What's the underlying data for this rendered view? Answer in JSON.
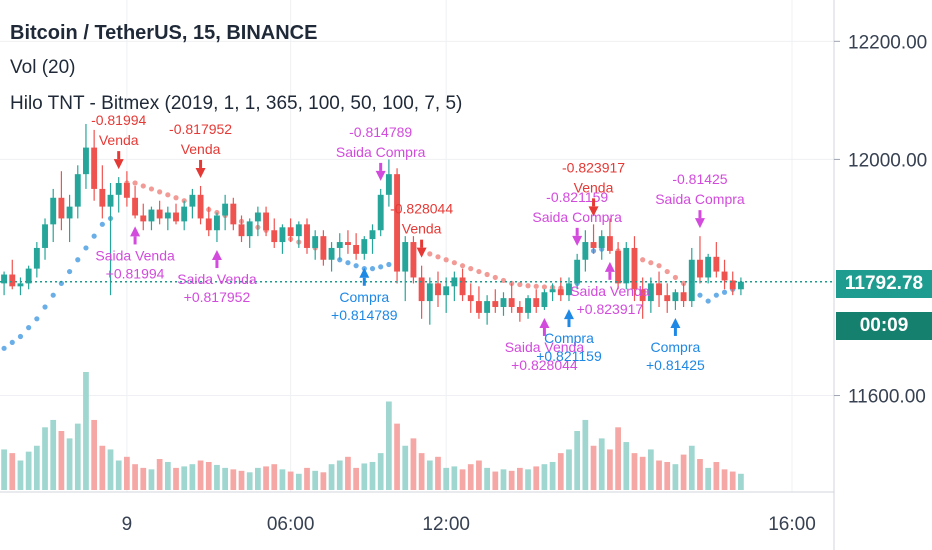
{
  "legend": {
    "symbol": "Bitcoin / TetherUS, 15, BINANCE",
    "volume": "Vol (20)",
    "indicator": "Hilo TNT - Bitmex (2019, 1, 1, 365, 100, 50, 100, 7, 5)"
  },
  "current_price": "11792.78",
  "countdown": "00:09",
  "colors": {
    "up": "#26a69a",
    "down": "#ef5350",
    "up_vol": "#9fd6cf",
    "down_vol": "#f5a7a5",
    "hilo_up": "#6aaee8",
    "hilo_down": "#f29a96",
    "buy": "#1e88e5",
    "sell": "#e53935",
    "exit": "#d24bdc"
  },
  "chart_data": {
    "type": "candlestick",
    "y_axis": {
      "ticks": [
        "12200.00",
        "12000.00",
        "11600.00"
      ],
      "range": [
        11440,
        12270
      ]
    },
    "x_axis": {
      "ticks": [
        "9",
        "06:00",
        "12:00",
        "16:00"
      ]
    },
    "title": "Bitcoin / TetherUS, 15, BINANCE",
    "candles": [
      {
        "o": 11790,
        "h": 11810,
        "l": 11770,
        "c": 11805
      },
      {
        "o": 11805,
        "h": 11830,
        "l": 11780,
        "c": 11785
      },
      {
        "o": 11785,
        "h": 11800,
        "l": 11770,
        "c": 11790
      },
      {
        "o": 11790,
        "h": 11820,
        "l": 11780,
        "c": 11815
      },
      {
        "o": 11815,
        "h": 11860,
        "l": 11800,
        "c": 11850
      },
      {
        "o": 11850,
        "h": 11900,
        "l": 11830,
        "c": 11890
      },
      {
        "o": 11890,
        "h": 11950,
        "l": 11860,
        "c": 11935
      },
      {
        "o": 11935,
        "h": 11980,
        "l": 11880,
        "c": 11900
      },
      {
        "o": 11900,
        "h": 11940,
        "l": 11860,
        "c": 11920
      },
      {
        "o": 11920,
        "h": 11990,
        "l": 11900,
        "c": 11975
      },
      {
        "o": 11975,
        "h": 12060,
        "l": 11950,
        "c": 12020
      },
      {
        "o": 12020,
        "h": 12050,
        "l": 11930,
        "c": 11950
      },
      {
        "o": 11950,
        "h": 11990,
        "l": 11900,
        "c": 11920
      },
      {
        "o": 11920,
        "h": 11960,
        "l": 11770,
        "c": 11940
      },
      {
        "o": 11940,
        "h": 11970,
        "l": 11910,
        "c": 11960
      },
      {
        "o": 11960,
        "h": 11980,
        "l": 11920,
        "c": 11935
      },
      {
        "o": 11935,
        "h": 11955,
        "l": 11900,
        "c": 11905
      },
      {
        "o": 11905,
        "h": 11925,
        "l": 11880,
        "c": 11895
      },
      {
        "o": 11895,
        "h": 11920,
        "l": 11880,
        "c": 11915
      },
      {
        "o": 11915,
        "h": 11930,
        "l": 11890,
        "c": 11900
      },
      {
        "o": 11900,
        "h": 11920,
        "l": 11880,
        "c": 11910
      },
      {
        "o": 11910,
        "h": 11925,
        "l": 11890,
        "c": 11895
      },
      {
        "o": 11895,
        "h": 11930,
        "l": 11880,
        "c": 11920
      },
      {
        "o": 11920,
        "h": 11950,
        "l": 11900,
        "c": 11940
      },
      {
        "o": 11940,
        "h": 11955,
        "l": 11890,
        "c": 11900
      },
      {
        "o": 11900,
        "h": 11920,
        "l": 11870,
        "c": 11880
      },
      {
        "o": 11880,
        "h": 11910,
        "l": 11860,
        "c": 11905
      },
      {
        "o": 11905,
        "h": 11940,
        "l": 11880,
        "c": 11925
      },
      {
        "o": 11925,
        "h": 11935,
        "l": 11880,
        "c": 11890
      },
      {
        "o": 11890,
        "h": 11905,
        "l": 11860,
        "c": 11870
      },
      {
        "o": 11870,
        "h": 11900,
        "l": 11850,
        "c": 11895
      },
      {
        "o": 11895,
        "h": 11920,
        "l": 11870,
        "c": 11910
      },
      {
        "o": 11910,
        "h": 11920,
        "l": 11870,
        "c": 11880
      },
      {
        "o": 11880,
        "h": 11900,
        "l": 11850,
        "c": 11860
      },
      {
        "o": 11860,
        "h": 11890,
        "l": 11840,
        "c": 11885
      },
      {
        "o": 11885,
        "h": 11900,
        "l": 11860,
        "c": 11870
      },
      {
        "o": 11870,
        "h": 11895,
        "l": 11850,
        "c": 11890
      },
      {
        "o": 11890,
        "h": 11900,
        "l": 11840,
        "c": 11850
      },
      {
        "o": 11850,
        "h": 11880,
        "l": 11830,
        "c": 11870
      },
      {
        "o": 11870,
        "h": 11880,
        "l": 11820,
        "c": 11830
      },
      {
        "o": 11830,
        "h": 11860,
        "l": 11810,
        "c": 11850
      },
      {
        "o": 11850,
        "h": 11875,
        "l": 11830,
        "c": 11860
      },
      {
        "o": 11860,
        "h": 11880,
        "l": 11840,
        "c": 11855
      },
      {
        "o": 11855,
        "h": 11875,
        "l": 11830,
        "c": 11840
      },
      {
        "o": 11840,
        "h": 11870,
        "l": 11830,
        "c": 11865
      },
      {
        "o": 11865,
        "h": 11890,
        "l": 11840,
        "c": 11880
      },
      {
        "o": 11880,
        "h": 11950,
        "l": 11870,
        "c": 11940
      },
      {
        "o": 11940,
        "h": 12000,
        "l": 11920,
        "c": 11975
      },
      {
        "o": 11975,
        "h": 11985,
        "l": 11790,
        "c": 11810
      },
      {
        "o": 11810,
        "h": 11870,
        "l": 11760,
        "c": 11860
      },
      {
        "o": 11860,
        "h": 11870,
        "l": 11790,
        "c": 11800
      },
      {
        "o": 11800,
        "h": 11820,
        "l": 11730,
        "c": 11760
      },
      {
        "o": 11760,
        "h": 11800,
        "l": 11720,
        "c": 11790
      },
      {
        "o": 11790,
        "h": 11810,
        "l": 11750,
        "c": 11770
      },
      {
        "o": 11770,
        "h": 11800,
        "l": 11740,
        "c": 11785
      },
      {
        "o": 11785,
        "h": 11810,
        "l": 11760,
        "c": 11800
      },
      {
        "o": 11800,
        "h": 11815,
        "l": 11760,
        "c": 11770
      },
      {
        "o": 11770,
        "h": 11790,
        "l": 11740,
        "c": 11760
      },
      {
        "o": 11760,
        "h": 11785,
        "l": 11730,
        "c": 11740
      },
      {
        "o": 11740,
        "h": 11770,
        "l": 11720,
        "c": 11760
      },
      {
        "o": 11760,
        "h": 11780,
        "l": 11740,
        "c": 11750
      },
      {
        "o": 11750,
        "h": 11775,
        "l": 11735,
        "c": 11765
      },
      {
        "o": 11765,
        "h": 11790,
        "l": 11740,
        "c": 11750
      },
      {
        "o": 11750,
        "h": 11760,
        "l": 11725,
        "c": 11740
      },
      {
        "o": 11740,
        "h": 11770,
        "l": 11730,
        "c": 11765
      },
      {
        "o": 11765,
        "h": 11780,
        "l": 11740,
        "c": 11750
      },
      {
        "o": 11750,
        "h": 11780,
        "l": 11745,
        "c": 11775
      },
      {
        "o": 11775,
        "h": 11790,
        "l": 11760,
        "c": 11780
      },
      {
        "o": 11780,
        "h": 11800,
        "l": 11760,
        "c": 11770
      },
      {
        "o": 11770,
        "h": 11800,
        "l": 11760,
        "c": 11790
      },
      {
        "o": 11790,
        "h": 11840,
        "l": 11780,
        "c": 11830
      },
      {
        "o": 11830,
        "h": 11880,
        "l": 11810,
        "c": 11860
      },
      {
        "o": 11860,
        "h": 11890,
        "l": 11840,
        "c": 11850
      },
      {
        "o": 11850,
        "h": 11880,
        "l": 11830,
        "c": 11870
      },
      {
        "o": 11870,
        "h": 11900,
        "l": 11840,
        "c": 11845
      },
      {
        "o": 11845,
        "h": 11860,
        "l": 11780,
        "c": 11790
      },
      {
        "o": 11790,
        "h": 11860,
        "l": 11780,
        "c": 11850
      },
      {
        "o": 11850,
        "h": 11870,
        "l": 11760,
        "c": 11780
      },
      {
        "o": 11780,
        "h": 11800,
        "l": 11730,
        "c": 11760
      },
      {
        "o": 11760,
        "h": 11800,
        "l": 11740,
        "c": 11790
      },
      {
        "o": 11790,
        "h": 11810,
        "l": 11750,
        "c": 11770
      },
      {
        "o": 11770,
        "h": 11790,
        "l": 11740,
        "c": 11760
      },
      {
        "o": 11760,
        "h": 11780,
        "l": 11745,
        "c": 11775
      },
      {
        "o": 11775,
        "h": 11790,
        "l": 11750,
        "c": 11760
      },
      {
        "o": 11760,
        "h": 11850,
        "l": 11750,
        "c": 11830
      },
      {
        "o": 11830,
        "h": 11870,
        "l": 11790,
        "c": 11800
      },
      {
        "o": 11800,
        "h": 11840,
        "l": 11790,
        "c": 11835
      },
      {
        "o": 11835,
        "h": 11860,
        "l": 11800,
        "c": 11810
      },
      {
        "o": 11810,
        "h": 11830,
        "l": 11780,
        "c": 11795
      },
      {
        "o": 11795,
        "h": 11810,
        "l": 11770,
        "c": 11780
      },
      {
        "o": 11780,
        "h": 11800,
        "l": 11770,
        "c": 11792.78
      }
    ],
    "hilo": [
      11680,
      11690,
      11700,
      11715,
      11730,
      11750,
      11770,
      11790,
      11810,
      11830,
      11850,
      11870,
      11890,
      11900,
      11950,
      11960,
      11960,
      11955,
      11950,
      11945,
      11940,
      11935,
      11930,
      11925,
      11920,
      11915,
      11910,
      11905,
      11900,
      11895,
      11890,
      11885,
      11880,
      11875,
      11870,
      11865,
      11860,
      11855,
      11850,
      11845,
      11835,
      11830,
      11825,
      11820,
      11815,
      11815,
      11818,
      11822,
      11850,
      11855,
      11850,
      11845,
      11840,
      11835,
      11830,
      11825,
      11820,
      11815,
      11810,
      11805,
      11800,
      11795,
      11790,
      11788,
      11786,
      11785,
      11784,
      11783,
      11782,
      11781,
      11790,
      11840,
      11845,
      11848,
      11850,
      11845,
      11840,
      11835,
      11830,
      11825,
      11820,
      11810,
      11800,
      11790,
      11780,
      11770,
      11760,
      11770,
      11775,
      11780,
      11785
    ],
    "hilo_dir": [
      1,
      1,
      1,
      1,
      1,
      1,
      1,
      1,
      1,
      1,
      1,
      1,
      1,
      1,
      -1,
      -1,
      -1,
      -1,
      -1,
      -1,
      -1,
      -1,
      -1,
      -1,
      -1,
      -1,
      -1,
      -1,
      -1,
      -1,
      -1,
      -1,
      -1,
      -1,
      -1,
      -1,
      -1,
      -1,
      -1,
      1,
      1,
      1,
      1,
      1,
      1,
      1,
      1,
      1,
      -1,
      -1,
      -1,
      -1,
      -1,
      -1,
      -1,
      -1,
      -1,
      -1,
      -1,
      -1,
      -1,
      -1,
      -1,
      -1,
      -1,
      -1,
      -1,
      -1,
      -1,
      -1,
      1,
      1,
      1,
      1,
      1,
      -1,
      -1,
      -1,
      -1,
      -1,
      -1,
      -1,
      -1,
      -1,
      1,
      1,
      1,
      1,
      1,
      1,
      1
    ],
    "volume": [
      55,
      50,
      40,
      52,
      60,
      85,
      95,
      80,
      70,
      90,
      160,
      95,
      60,
      55,
      40,
      45,
      35,
      30,
      28,
      42,
      38,
      30,
      32,
      35,
      40,
      38,
      34,
      30,
      28,
      26,
      24,
      30,
      32,
      35,
      28,
      25,
      22,
      30,
      26,
      24,
      35,
      40,
      45,
      30,
      36,
      38,
      50,
      120,
      90,
      60,
      70,
      50,
      40,
      45,
      30,
      32,
      28,
      35,
      40,
      30,
      25,
      28,
      26,
      30,
      28,
      32,
      35,
      38,
      50,
      55,
      80,
      95,
      60,
      70,
      55,
      85,
      65,
      50,
      45,
      55,
      40,
      38,
      35,
      48,
      60,
      42,
      30,
      38,
      28,
      25,
      22
    ],
    "signals": [
      {
        "i": 14,
        "type": "sell",
        "label": "Venda",
        "value": "-0.81994"
      },
      {
        "i": 16,
        "type": "exit_sell",
        "label": "Saida Venda",
        "value": "+0.81994"
      },
      {
        "i": 24,
        "type": "sell",
        "label": "Venda",
        "value": "-0.817952"
      },
      {
        "i": 26,
        "type": "exit_sell",
        "label": "Saida Venda",
        "value": "+0.817952"
      },
      {
        "i": 46,
        "type": "exit_buy",
        "label": "Saida Compra",
        "value": "-0.814789"
      },
      {
        "i": 44,
        "type": "buy",
        "label": "Compra",
        "value": "+0.814789"
      },
      {
        "i": 51,
        "type": "sell",
        "label": "Venda",
        "value": "-0.828044"
      },
      {
        "i": 66,
        "type": "exit_sell",
        "label": "Saida Venda",
        "value": "+0.828044"
      },
      {
        "i": 70,
        "type": "exit_buy",
        "label": "Saida Compra",
        "value": "-0.821159"
      },
      {
        "i": 69,
        "type": "buy",
        "label": "Compra",
        "value": "+0.821159"
      },
      {
        "i": 72,
        "type": "sell",
        "label": "Venda",
        "value": "-0.823917"
      },
      {
        "i": 74,
        "type": "exit_sell",
        "label": "Saida Venda",
        "value": "+0.823917"
      },
      {
        "i": 85,
        "type": "exit_buy",
        "label": "Saida Compra",
        "value": "-0.81425"
      },
      {
        "i": 82,
        "type": "buy",
        "label": "Compra",
        "value": "+0.81425"
      }
    ]
  }
}
